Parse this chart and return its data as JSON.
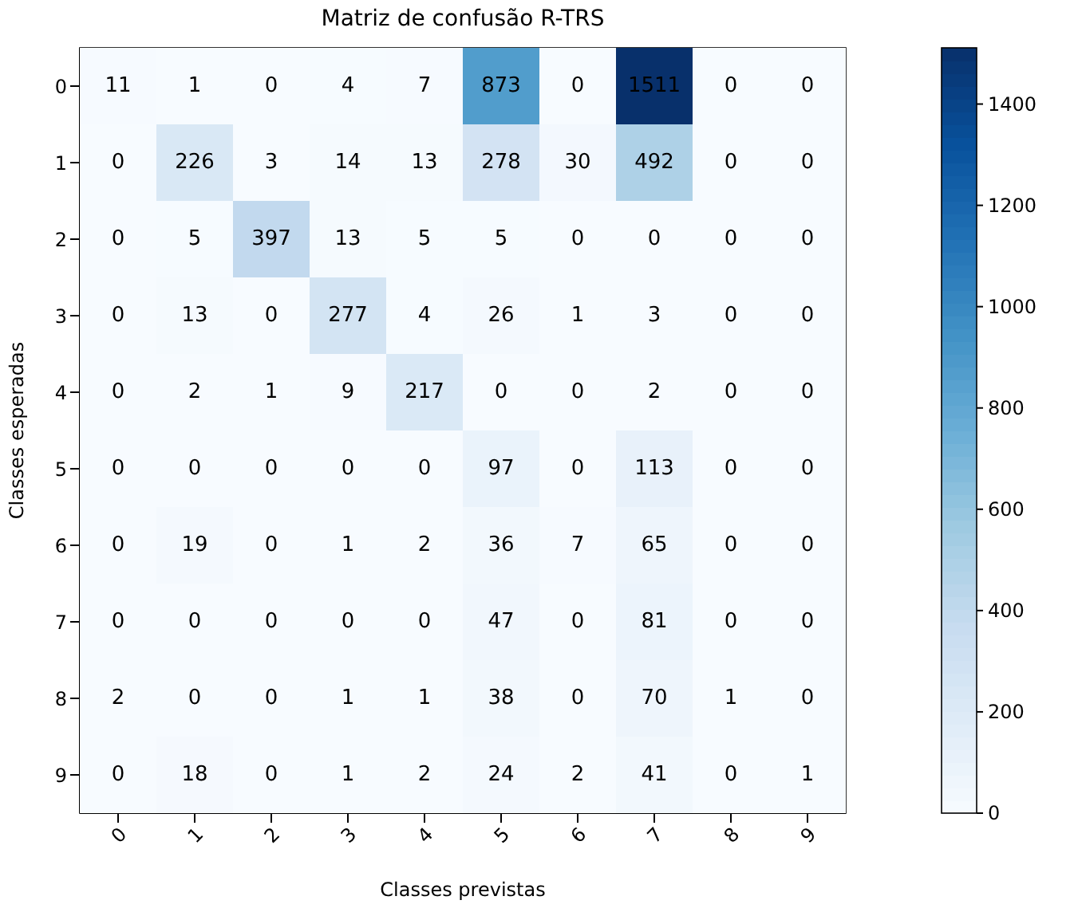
{
  "chart_data": {
    "type": "heatmap",
    "title": "Matriz de confusão R-TRS",
    "xlabel": "Classes previstas",
    "ylabel": "Classes esperadas",
    "categories": [
      "0",
      "1",
      "2",
      "3",
      "4",
      "5",
      "6",
      "7",
      "8",
      "9"
    ],
    "y_categories": [
      "0",
      "1",
      "2",
      "3",
      "4",
      "5",
      "6",
      "7",
      "8",
      "9"
    ],
    "cells": [
      [
        11,
        1,
        0,
        4,
        7,
        873,
        0,
        1511,
        0,
        0
      ],
      [
        0,
        226,
        3,
        14,
        13,
        278,
        30,
        492,
        0,
        0
      ],
      [
        0,
        5,
        397,
        13,
        5,
        5,
        0,
        0,
        0,
        0
      ],
      [
        0,
        13,
        0,
        277,
        4,
        26,
        1,
        3,
        0,
        0
      ],
      [
        0,
        2,
        1,
        9,
        217,
        0,
        0,
        2,
        0,
        0
      ],
      [
        0,
        0,
        0,
        0,
        0,
        97,
        0,
        113,
        0,
        0
      ],
      [
        0,
        19,
        0,
        1,
        2,
        36,
        7,
        65,
        0,
        0
      ],
      [
        0,
        0,
        0,
        0,
        0,
        47,
        0,
        81,
        0,
        0
      ],
      [
        2,
        0,
        0,
        1,
        1,
        38,
        0,
        70,
        1,
        0
      ],
      [
        0,
        18,
        0,
        1,
        2,
        24,
        2,
        41,
        0,
        1
      ]
    ],
    "clim": [
      0,
      1511
    ],
    "cticks": [
      0,
      200,
      400,
      600,
      800,
      1000,
      1200,
      1400
    ],
    "data_labels": true
  }
}
